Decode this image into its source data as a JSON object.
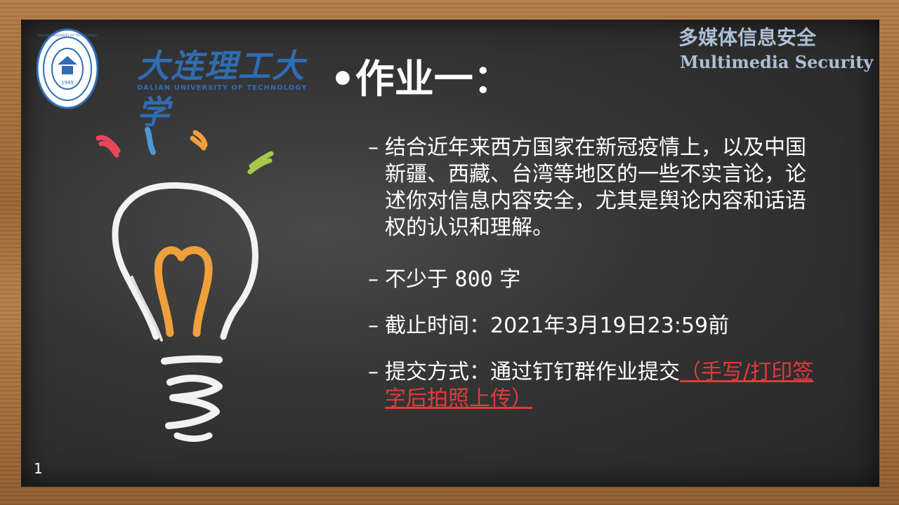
{
  "header": {
    "university_name_cn": "大连理工大学",
    "university_name_en": "DALIAN UNIVERSITY OF TECHNOLOGY",
    "seal_ring_text": "DALIAN UNIVERSITY OF TECHNOLOGY",
    "seal_year": "1949",
    "course_title_cn": "多媒体信息安全",
    "course_title_en": "Multimedia Security"
  },
  "slide": {
    "title": "•作业一：",
    "page_number": "1",
    "items": [
      {
        "dash": "–",
        "text": "结合近年来西方国家在新冠疫情上，以及中国新疆、西藏、台湾等地区的一些不实言论，论述你对信息内容安全，尤其是舆论内容和话语权的认识和理解。"
      },
      {
        "dash": "–",
        "text_prefix": "不少于 ",
        "text_number": "800",
        "text_suffix": " 字"
      },
      {
        "dash": "–",
        "text": "截止时间：2021年3月19日23:59前"
      },
      {
        "dash": "–",
        "text": "提交方式：通过钉钉群作业提交",
        "note": "（手写/打印签字后拍照上传）"
      }
    ]
  },
  "colors": {
    "board": "#343434",
    "frame": "#9a6434",
    "text": "#ffffff",
    "accent_red": "#e23a3a",
    "logo_blue": "#2f6db3",
    "course_title": "#aebfd6",
    "bulb_filament": "#f0a03a"
  },
  "icons": {
    "bulb": "lightbulb-chalk-drawing",
    "seal": "university-seal-logo"
  }
}
